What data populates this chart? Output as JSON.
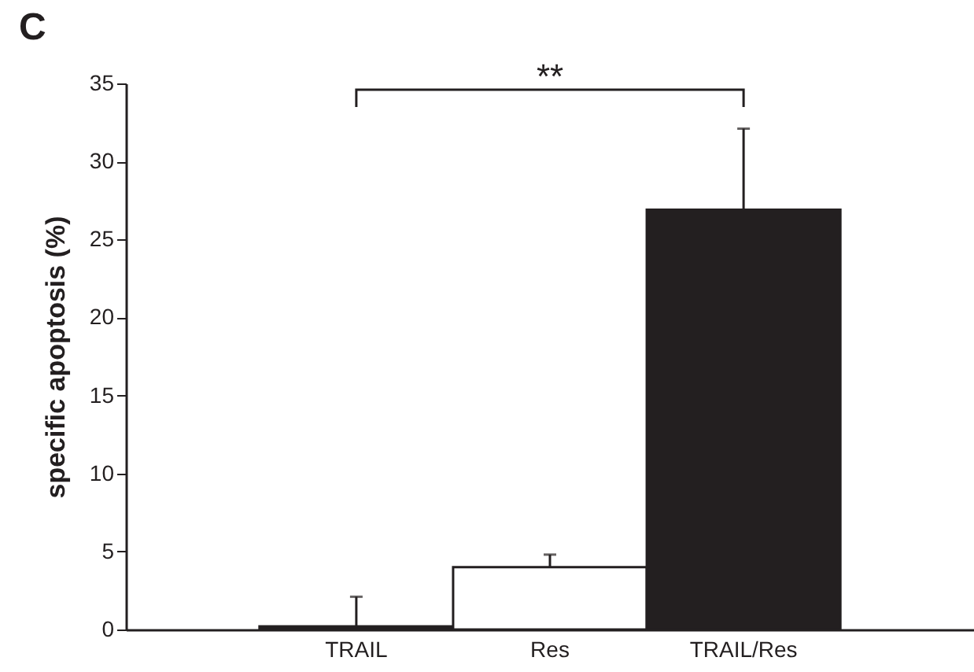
{
  "chart_data": {
    "type": "bar",
    "title": "C",
    "ylabel": "specific apoptosis (%)",
    "categories": [
      "TRAIL",
      "Res",
      "TRAIL/Res"
    ],
    "values": [
      0.2,
      4.0,
      26.9
    ],
    "colors": [
      "#231f20",
      "#ffffff",
      "#231f20"
    ],
    "errors": [
      [
        0.2,
        2.1
      ],
      [
        4.0,
        4.8
      ],
      [
        26.9,
        32.1
      ]
    ],
    "ylim": [
      0,
      35
    ],
    "yticks": [
      0,
      5,
      10,
      15,
      20,
      25,
      30,
      35
    ],
    "annotations": [
      "**"
    ],
    "grid": false
  }
}
